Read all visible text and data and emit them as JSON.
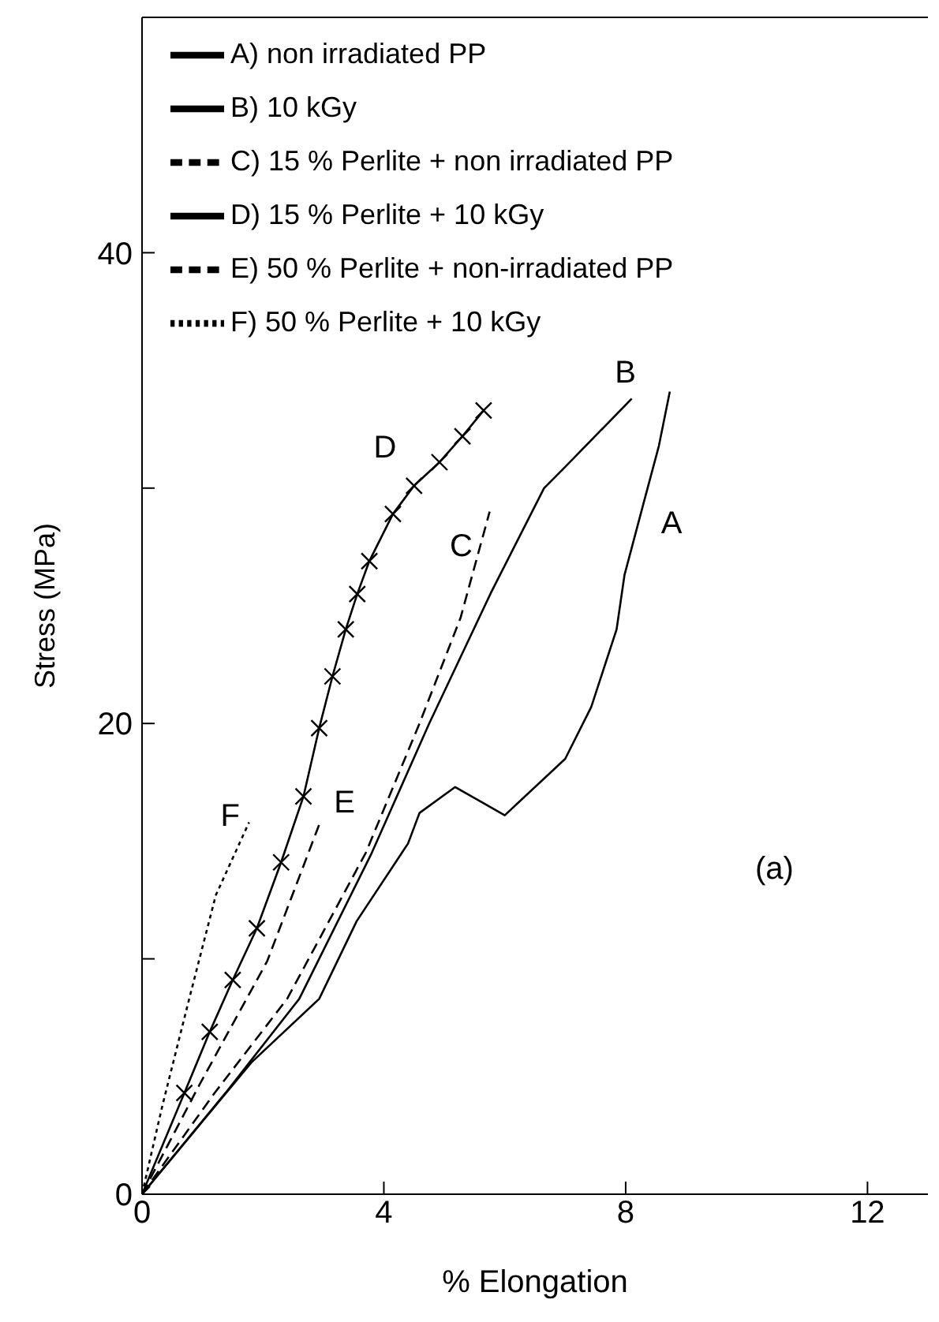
{
  "chart_data": {
    "type": "line",
    "xlabel": "% Elongation",
    "ylabel": "Stress (MPa)",
    "xlim": [
      0,
      13
    ],
    "ylim": [
      0,
      50
    ],
    "xticks": [
      0,
      4,
      8,
      12
    ],
    "yticks": [
      0,
      {
        "value": 10,
        "label": null
      },
      20,
      {
        "value": 30,
        "label": null
      },
      40
    ],
    "grid": false,
    "legend": "top left",
    "marker": "none",
    "series": [
      {
        "name": "A) non irradiated PP",
        "color": "#000000",
        "line_style": "solid",
        "x": [
          0,
          1.81,
          2.93,
          3.55,
          4.4,
          4.59,
          5.18,
          6.0,
          7.0,
          7.43,
          7.85,
          7.98,
          8.29,
          8.55,
          8.73
        ],
        "values": [
          0,
          5.6,
          8.3,
          11.6,
          14.9,
          16.2,
          17.3,
          16.1,
          18.5,
          20.7,
          24,
          26.3,
          29.3,
          31.8,
          34.1
        ]
      },
      {
        "name": "B) 10 kGy",
        "color": "#000000",
        "line_style": "solid",
        "x": [
          0,
          1.38,
          2.6,
          3.8,
          4.75,
          5.78,
          6.65,
          7.0,
          8.1
        ],
        "values": [
          0,
          4.3,
          8.3,
          14.5,
          20,
          25.6,
          30,
          30.9,
          33.8
        ]
      },
      {
        "name": "C) 15 % Perlite + non irradiated PP",
        "color": "#000000",
        "line_style": "dashed",
        "x": [
          0,
          1.2,
          2.4,
          3.7,
          4.59,
          5.27,
          5.75
        ],
        "values": [
          0,
          4.3,
          8.3,
          14.5,
          20,
          24.5,
          29
        ]
      },
      {
        "name": "D) 15 % Perlite + 10 kGy",
        "color": "#000000",
        "line_style": "solid",
        "marker": "cross",
        "x": [
          0,
          0.7,
          1.12,
          1.5,
          1.9,
          2.3,
          2.67,
          2.93,
          3.15,
          3.37,
          3.56,
          3.76,
          4.15,
          4.5,
          4.92,
          5.3,
          5.65
        ],
        "values": [
          0,
          4.3,
          6.9,
          9.1,
          11.3,
          14.1,
          16.9,
          19.8,
          22,
          24,
          25.5,
          26.9,
          28.9,
          30.1,
          31.1,
          32.2,
          33.3
        ]
      },
      {
        "name": "E) 50 % Perlite + non-irradiated PP",
        "color": "#000000",
        "line_style": "dashed",
        "x": [
          0,
          0.96,
          2.07,
          2.93
        ],
        "values": [
          0,
          4.7,
          9.9,
          15.7
        ]
      },
      {
        "name": "F) 50 % Perlite + 10 kGy",
        "color": "#000000",
        "line_style": "dotted",
        "x": [
          0,
          0.34,
          0.78,
          1.22,
          1.77
        ],
        "values": [
          0,
          3.8,
          8.3,
          12.7,
          15.8
        ]
      }
    ],
    "annotations": [
      {
        "text": "A",
        "x": 8.29,
        "y": 29.3
      },
      {
        "text": "B",
        "x": 8.1,
        "y": 33.8
      },
      {
        "text": "C",
        "x": 5.75,
        "y": 29
      },
      {
        "text": "D",
        "x": 4.15,
        "y": 28.9
      },
      {
        "text": "E",
        "x": 2.93,
        "y": 15.7
      },
      {
        "text": "F",
        "x": 1.77,
        "y": 15.8
      },
      "(a)"
    ]
  }
}
